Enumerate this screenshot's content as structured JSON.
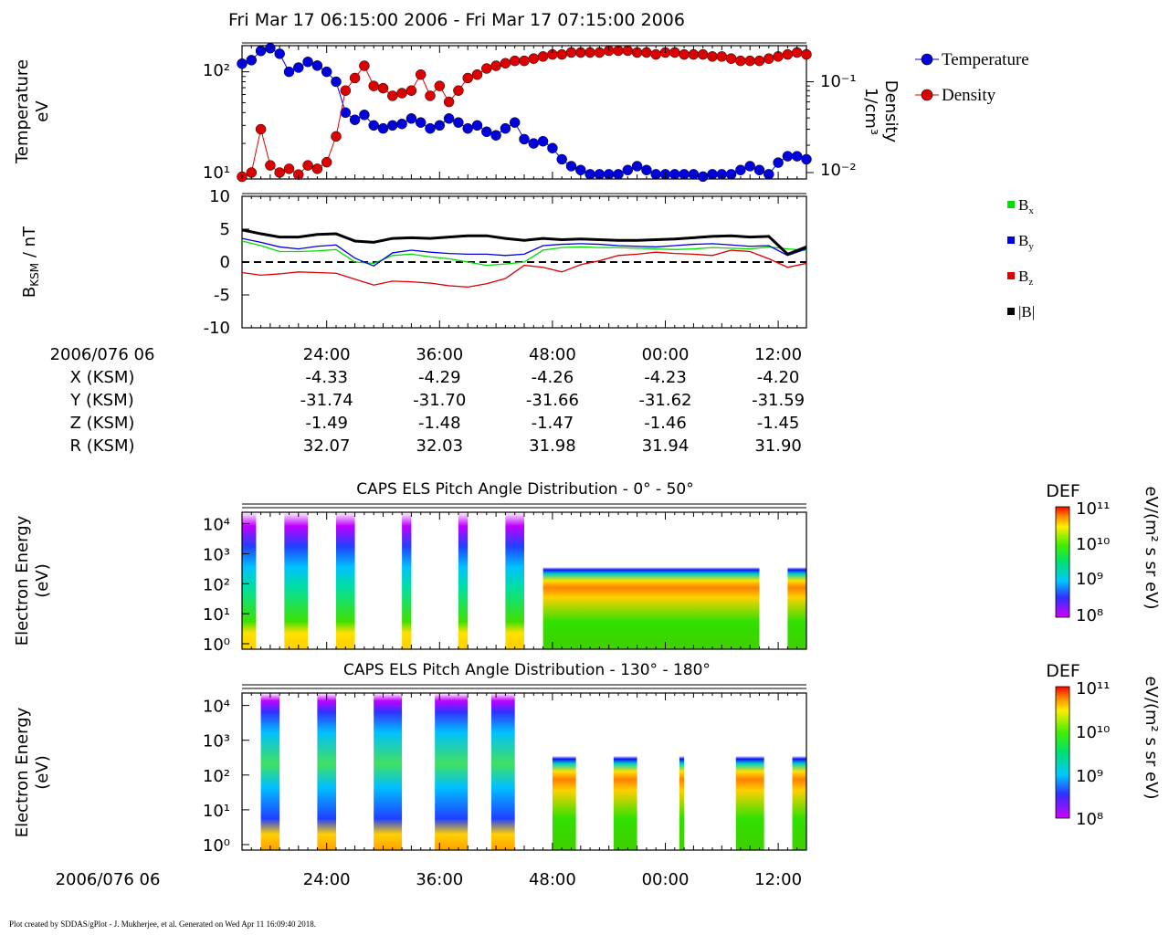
{
  "header": {
    "title": "Fri Mar 17 06:15:00 2006 - Fri Mar 17 07:15:00 2006"
  },
  "footer": {
    "text": "Plot created by SDDAS/gPlot - J. Mukherjee, et al.  Generated on Wed Apr 11 16:09:40 2018."
  },
  "colors": {
    "temperature": "#0000dd",
    "density": "#dd0000",
    "bx": "#00dd00",
    "by": "#0000dd",
    "bz": "#dd0000",
    "bmag": "#000000"
  },
  "time_axis": {
    "start_label": "2006/076 06",
    "tick_labels": [
      "24:00",
      "36:00",
      "48:00",
      "00:00",
      "12:00"
    ],
    "tick_minutes": [
      9,
      21,
      33,
      45,
      57
    ]
  },
  "ephemeris": {
    "rows": [
      {
        "label": "X (KSM)",
        "values": [
          "-4.33",
          "-4.29",
          "-4.26",
          "-4.23",
          "-4.20"
        ]
      },
      {
        "label": "Y (KSM)",
        "values": [
          "-31.74",
          "-31.70",
          "-31.66",
          "-31.62",
          "-31.59"
        ]
      },
      {
        "label": "Z (KSM)",
        "values": [
          "-1.49",
          "-1.48",
          "-1.47",
          "-1.46",
          "-1.45"
        ]
      },
      {
        "label": "R (KSM)",
        "values": [
          "32.07",
          "32.03",
          "31.98",
          "31.94",
          "31.90"
        ]
      }
    ]
  },
  "chart_data": [
    {
      "type": "line",
      "ylabel": [
        "Temperature",
        "eV"
      ],
      "ylabel_right": [
        "Density",
        "1/cm³"
      ],
      "yscale": "log",
      "ylim": [
        9,
        180
      ],
      "y2lim": [
        0.0085,
        0.25
      ],
      "yticks": [
        "10¹",
        "10²"
      ],
      "y2ticks": [
        "10⁻²",
        "10⁻¹"
      ],
      "legend_placement": "right",
      "series": [
        {
          "name": "Temperature",
          "x": [
            0,
            1,
            2,
            3,
            4,
            5,
            6,
            7,
            8,
            9,
            10,
            11,
            12,
            13,
            14,
            15,
            16,
            17,
            18,
            19,
            20,
            21,
            22,
            23,
            24,
            25,
            26,
            27,
            28,
            29,
            30,
            31,
            32,
            33,
            34,
            35,
            36,
            37,
            38,
            39,
            40,
            41,
            42,
            43,
            44,
            45,
            46,
            47,
            48,
            49,
            50,
            51,
            52,
            53,
            54,
            55,
            56,
            57,
            58,
            59,
            60
          ],
          "values": [
            120,
            130,
            160,
            170,
            150,
            100,
            110,
            125,
            115,
            100,
            80,
            40,
            34,
            38,
            30,
            28,
            30,
            31,
            35,
            32,
            28,
            30,
            35,
            32,
            28,
            30,
            26,
            24,
            28,
            32,
            22,
            20,
            21,
            18,
            14,
            12,
            11,
            10,
            10,
            10,
            10,
            11,
            12,
            11,
            10,
            10,
            10,
            10,
            10,
            9.5,
            10,
            10,
            10,
            11,
            12,
            11,
            10,
            13,
            15,
            15,
            14
          ],
          "data_points_shown_as_markers": true
        },
        {
          "name": "Density",
          "axis": "right",
          "x": [
            0,
            1,
            2,
            3,
            4,
            5,
            6,
            7,
            8,
            9,
            10,
            11,
            12,
            13,
            14,
            15,
            16,
            17,
            18,
            19,
            20,
            21,
            22,
            23,
            24,
            25,
            26,
            27,
            28,
            29,
            30,
            31,
            32,
            33,
            34,
            35,
            36,
            37,
            38,
            39,
            40,
            41,
            42,
            43,
            44,
            45,
            46,
            47,
            48,
            49,
            50,
            51,
            52,
            53,
            54,
            55,
            56,
            57,
            58,
            59,
            60
          ],
          "values": [
            0.009,
            0.01,
            0.03,
            0.012,
            0.01,
            0.011,
            0.0095,
            0.012,
            0.011,
            0.013,
            0.025,
            0.08,
            0.11,
            0.15,
            0.09,
            0.085,
            0.07,
            0.075,
            0.08,
            0.12,
            0.07,
            0.09,
            0.06,
            0.08,
            0.11,
            0.12,
            0.14,
            0.15,
            0.16,
            0.17,
            0.17,
            0.18,
            0.19,
            0.2,
            0.2,
            0.21,
            0.21,
            0.21,
            0.21,
            0.22,
            0.22,
            0.22,
            0.21,
            0.21,
            0.2,
            0.21,
            0.21,
            0.2,
            0.2,
            0.2,
            0.19,
            0.19,
            0.18,
            0.17,
            0.17,
            0.17,
            0.18,
            0.19,
            0.2,
            0.21,
            0.2
          ],
          "data_points_shown_as_markers": true
        }
      ]
    },
    {
      "type": "line",
      "ylabel": "B",
      "ylabel_sub": "KSM",
      "ylabel_unit": " / nT",
      "ylim": [
        -10,
        10
      ],
      "yticks": [
        10,
        5,
        0,
        -5,
        -10
      ],
      "zero_line": "dashed",
      "legend_placement": "right",
      "series": [
        {
          "name": "Bx",
          "label_main": "B",
          "label_sub": "x",
          "x": [
            0,
            2,
            4,
            6,
            8,
            10,
            12,
            14,
            16,
            18,
            20,
            22,
            24,
            26,
            28,
            30,
            32,
            34,
            36,
            38,
            40,
            42,
            44,
            46,
            48,
            50,
            52,
            54,
            56,
            58,
            60
          ],
          "values": [
            3.2,
            2.5,
            1.6,
            1.6,
            1.7,
            1.9,
            0.0,
            -0.2,
            1.0,
            1.2,
            0.8,
            0.5,
            0.0,
            -0.5,
            -0.3,
            0.0,
            1.8,
            2.2,
            2.3,
            2.2,
            2.2,
            2.1,
            2.0,
            1.9,
            2.0,
            2.2,
            2.1,
            2.0,
            2.3,
            2.0,
            1.8
          ]
        },
        {
          "name": "By",
          "label_main": "B",
          "label_sub": "y",
          "x": [
            0,
            2,
            4,
            6,
            8,
            10,
            12,
            14,
            16,
            18,
            20,
            22,
            24,
            26,
            28,
            30,
            32,
            34,
            36,
            38,
            40,
            42,
            44,
            46,
            48,
            50,
            52,
            54,
            56,
            58,
            60
          ],
          "values": [
            3.6,
            3.0,
            2.3,
            2.0,
            2.4,
            2.6,
            0.6,
            -0.6,
            1.4,
            1.8,
            1.5,
            1.3,
            1.2,
            1.2,
            1.0,
            1.2,
            2.5,
            2.7,
            2.8,
            2.7,
            2.5,
            2.4,
            2.3,
            2.5,
            2.7,
            2.8,
            2.6,
            2.4,
            2.5,
            1.0,
            2.0
          ]
        },
        {
          "name": "Bz",
          "label_main": "B",
          "label_sub": "z",
          "x": [
            0,
            2,
            4,
            6,
            8,
            10,
            12,
            14,
            16,
            18,
            20,
            22,
            24,
            26,
            28,
            30,
            32,
            34,
            36,
            38,
            40,
            42,
            44,
            46,
            48,
            50,
            52,
            54,
            56,
            58,
            60
          ],
          "values": [
            -1.6,
            -2.0,
            -1.8,
            -1.5,
            -1.6,
            -1.7,
            -2.6,
            -3.5,
            -2.9,
            -3.0,
            -3.2,
            -3.6,
            -3.8,
            -3.3,
            -2.5,
            -0.5,
            -0.8,
            -1.5,
            -0.4,
            0.2,
            1.0,
            1.2,
            1.5,
            1.3,
            1.2,
            1.0,
            1.8,
            1.6,
            0.5,
            -0.8,
            -0.2
          ]
        },
        {
          "name": "|B|",
          "label_main": "|B|",
          "label_sub": "",
          "x": [
            0,
            2,
            4,
            6,
            8,
            10,
            12,
            14,
            16,
            18,
            20,
            22,
            24,
            26,
            28,
            30,
            32,
            34,
            36,
            38,
            40,
            42,
            44,
            46,
            48,
            50,
            52,
            54,
            56,
            58,
            60
          ],
          "values": [
            4.9,
            4.3,
            3.8,
            3.8,
            4.2,
            4.3,
            3.2,
            3.0,
            3.6,
            3.7,
            3.6,
            3.8,
            4.0,
            4.0,
            3.6,
            3.3,
            3.6,
            3.4,
            3.5,
            3.4,
            3.3,
            3.3,
            3.4,
            3.5,
            3.7,
            3.9,
            4.0,
            3.8,
            3.9,
            1.2,
            2.3
          ]
        }
      ]
    },
    {
      "type": "heatmap",
      "title": "CAPS ELS Pitch Angle Distribution - 0° - 50°",
      "ylabel": [
        "Electron Energy",
        "(eV)"
      ],
      "yscale": "log",
      "yticks": [
        "10⁰",
        "10¹",
        "10²",
        "10³",
        "10⁴"
      ],
      "colorbar": {
        "title": "DEF",
        "unit": "eV/(m² s sr eV)",
        "ticks": [
          "10⁸",
          "10⁹",
          "10¹⁰",
          "10¹¹"
        ]
      },
      "data_bands_minutes": [
        [
          0,
          1.5
        ],
        [
          4.5,
          7
        ],
        [
          10,
          12
        ],
        [
          17,
          18
        ],
        [
          23,
          24
        ],
        [
          28,
          30
        ],
        [
          32,
          55
        ],
        [
          58,
          60
        ]
      ]
    },
    {
      "type": "heatmap",
      "title": "CAPS ELS Pitch Angle Distribution - 130° - 180°",
      "ylabel": [
        "Electron Energy",
        "(eV)"
      ],
      "yscale": "log",
      "yticks": [
        "10⁰",
        "10¹",
        "10²",
        "10³",
        "10⁴"
      ],
      "colorbar": {
        "title": "DEF",
        "unit": "eV/(m² s sr eV)",
        "ticks": [
          "10⁸",
          "10⁹",
          "10¹⁰",
          "10¹¹"
        ]
      },
      "data_bands_minutes": [
        [
          2,
          4
        ],
        [
          8,
          10
        ],
        [
          14,
          17
        ],
        [
          20.5,
          24
        ],
        [
          26.5,
          29
        ],
        [
          33,
          35.5
        ],
        [
          39.5,
          42
        ],
        [
          46.5,
          47
        ],
        [
          52.5,
          55.5
        ],
        [
          58.5,
          60
        ]
      ]
    }
  ]
}
